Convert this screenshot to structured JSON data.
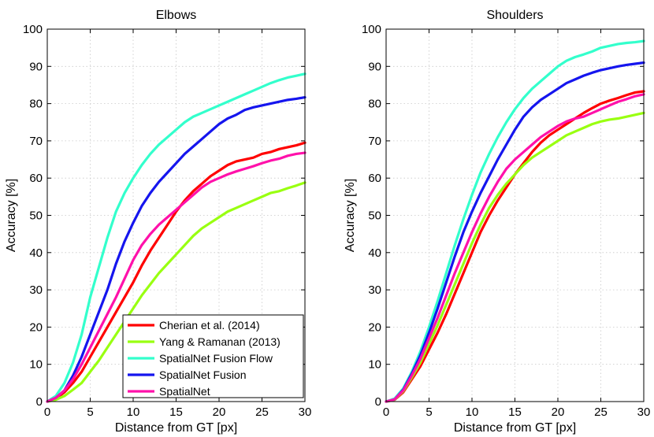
{
  "chart_data": [
    {
      "type": "line",
      "title": "Elbows",
      "xlabel": "Distance from GT [px]",
      "ylabel": "Accuracy [%]",
      "xlim": [
        0,
        30
      ],
      "ylim": [
        0,
        100
      ],
      "xticks": [
        "0",
        "5",
        "10",
        "15",
        "20",
        "25",
        "30"
      ],
      "yticks": [
        "0",
        "10",
        "20",
        "30",
        "40",
        "50",
        "60",
        "70",
        "80",
        "90",
        "100"
      ],
      "grid": true,
      "legend_position": "bottom-right",
      "x": [
        0,
        1,
        2,
        3,
        4,
        5,
        6,
        7,
        8,
        9,
        10,
        11,
        12,
        13,
        14,
        15,
        16,
        17,
        18,
        19,
        20,
        21,
        22,
        23,
        24,
        25,
        26,
        27,
        28,
        29,
        30
      ],
      "series": [
        {
          "name": "Cherian et al. (2014)",
          "color": "#ff0000",
          "values": [
            0,
            0.8,
            2.5,
            5,
            8,
            12,
            16,
            20,
            24,
            28,
            32,
            36.5,
            40.5,
            44,
            47.5,
            51,
            54,
            56.5,
            58.5,
            60.5,
            62,
            63.5,
            64.5,
            65,
            65.5,
            66.5,
            67,
            67.8,
            68.3,
            68.8,
            69.5
          ]
        },
        {
          "name": "Yang & Ramanan (2013)",
          "color": "#99ff11",
          "values": [
            0,
            0.5,
            1.5,
            3.2,
            5,
            8,
            11,
            14.5,
            18,
            21.5,
            25,
            28.5,
            31.5,
            34.5,
            37,
            39.5,
            42,
            44.5,
            46.5,
            48,
            49.5,
            51,
            52,
            53,
            54,
            55,
            56,
            56.5,
            57.3,
            58,
            58.8
          ]
        },
        {
          "name": "SpatialNet Fusion Flow",
          "color": "#33ffcc",
          "values": [
            0,
            1.5,
            5,
            10.5,
            18,
            28,
            36,
            44,
            51,
            56,
            60,
            63.5,
            66.5,
            69,
            71,
            73,
            75,
            76.5,
            77.5,
            78.5,
            79.5,
            80.5,
            81.5,
            82.5,
            83.5,
            84.5,
            85.5,
            86.3,
            87,
            87.5,
            88
          ]
        },
        {
          "name": "SpatialNet Fusion",
          "color": "#1515ee",
          "values": [
            0,
            1,
            3,
            7,
            12,
            18,
            24,
            30,
            37,
            43,
            48,
            52.5,
            56,
            59,
            61.5,
            64,
            66.5,
            68.5,
            70.5,
            72.5,
            74.5,
            76,
            77,
            78.3,
            79,
            79.5,
            80,
            80.5,
            81,
            81.3,
            81.7
          ]
        },
        {
          "name": "SpatialNet",
          "color": "#ff11aa",
          "values": [
            0,
            1,
            3,
            6,
            10,
            14.5,
            19,
            23.5,
            28,
            33,
            38,
            42,
            45,
            47.5,
            49.5,
            51.5,
            53.5,
            55.5,
            57.5,
            59,
            60,
            61,
            61.8,
            62.5,
            63.2,
            64,
            64.7,
            65.2,
            66,
            66.5,
            66.8
          ]
        }
      ]
    },
    {
      "type": "line",
      "title": "Shoulders",
      "xlabel": "Distance from GT [px]",
      "ylabel": "Accuracy [%]",
      "xlim": [
        0,
        30
      ],
      "ylim": [
        0,
        100
      ],
      "xticks": [
        "0",
        "5",
        "10",
        "15",
        "20",
        "25",
        "30"
      ],
      "yticks": [
        "0",
        "10",
        "20",
        "30",
        "40",
        "50",
        "60",
        "70",
        "80",
        "90",
        "100"
      ],
      "grid": true,
      "x": [
        0,
        1,
        2,
        3,
        4,
        5,
        6,
        7,
        8,
        9,
        10,
        11,
        12,
        13,
        14,
        15,
        16,
        17,
        18,
        19,
        20,
        21,
        22,
        23,
        24,
        25,
        26,
        27,
        28,
        29,
        30
      ],
      "series": [
        {
          "name": "Cherian et al. (2014)",
          "color": "#ff0000",
          "values": [
            0,
            0.5,
            2.5,
            6,
            9.5,
            14,
            18.5,
            23.5,
            29,
            34.5,
            40,
            45.5,
            50,
            54,
            57.5,
            61,
            64,
            67,
            69.5,
            71.5,
            73,
            74.5,
            76,
            77.5,
            78.8,
            80,
            80.8,
            81.5,
            82.3,
            83,
            83.3
          ]
        },
        {
          "name": "Yang & Ramanan (2013)",
          "color": "#99ff11",
          "values": [
            0,
            0.5,
            2.8,
            6.5,
            10.5,
            15.5,
            20.5,
            26,
            31.5,
            37,
            42.5,
            47.5,
            52,
            55.5,
            58.5,
            61,
            63.5,
            65.5,
            67,
            68.5,
            70,
            71.5,
            72.5,
            73.5,
            74.5,
            75.2,
            75.7,
            76,
            76.5,
            77,
            77.5
          ]
        },
        {
          "name": "SpatialNet Fusion Flow",
          "color": "#33ffcc",
          "values": [
            0,
            0.8,
            3.5,
            8,
            13.5,
            20,
            27,
            34.5,
            42,
            49,
            55.5,
            61.5,
            66.5,
            71,
            75,
            78.5,
            81.5,
            84,
            86,
            88,
            90,
            91.5,
            92.5,
            93.2,
            94,
            95,
            95.5,
            96,
            96.3,
            96.5,
            96.8
          ]
        },
        {
          "name": "SpatialNet Fusion",
          "color": "#1515ee",
          "values": [
            0,
            0.6,
            3.2,
            7.5,
            12.5,
            18.5,
            25,
            32,
            39,
            45.5,
            51,
            56,
            60.5,
            65,
            69,
            73,
            76.5,
            79,
            81,
            82.5,
            84,
            85.5,
            86.5,
            87.5,
            88.3,
            89,
            89.5,
            90,
            90.4,
            90.7,
            91
          ]
        },
        {
          "name": "SpatialNet",
          "color": "#ff11aa",
          "values": [
            0,
            0.6,
            3,
            7,
            11.5,
            17,
            22.5,
            28.5,
            34.5,
            40,
            45.5,
            50.5,
            55,
            59,
            62.5,
            65,
            67,
            69,
            71,
            72.5,
            74,
            75.2,
            76,
            76.5,
            77.5,
            78.5,
            79.5,
            80.5,
            81.2,
            82,
            82.5
          ]
        }
      ]
    }
  ]
}
